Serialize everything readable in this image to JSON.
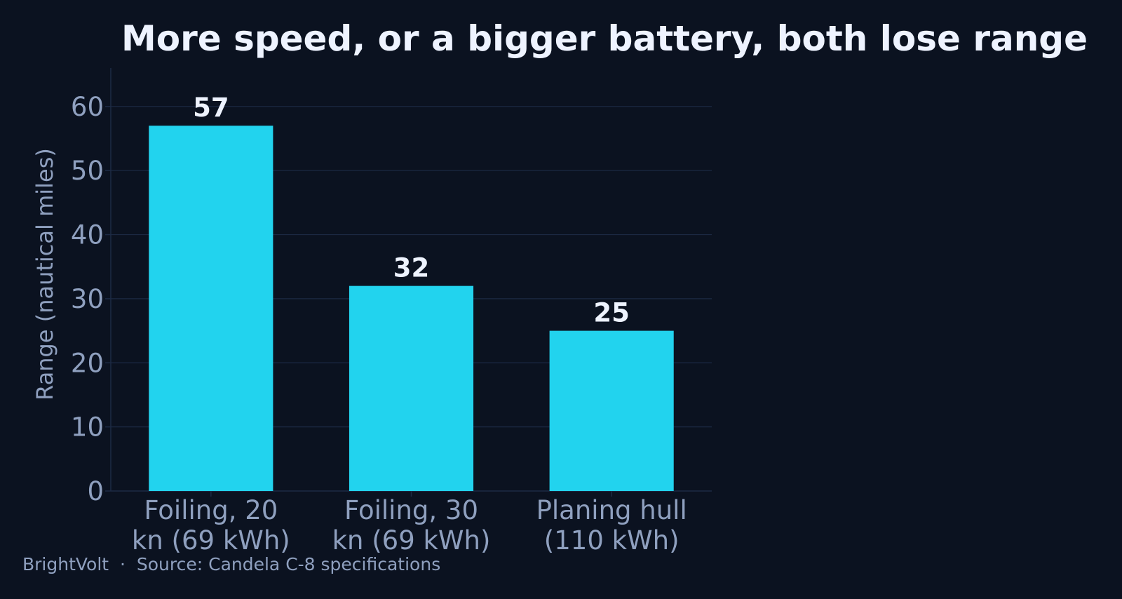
{
  "colors": {
    "background": "#0b1220",
    "bar": "#22d3ee",
    "grid": "#1c2a44",
    "text_muted": "#8fa0bf",
    "text_strong": "#eef3ff"
  },
  "chart_data": {
    "type": "bar",
    "title": "More speed, or a bigger battery, both lose range",
    "ylabel": "Range (nautical miles)",
    "xlabel": "",
    "categories": [
      [
        "Foiling, 20",
        "kn (69 kWh)"
      ],
      [
        "Foiling, 30",
        "kn (69 kWh)"
      ],
      [
        "Planing hull",
        "(110 kWh)"
      ]
    ],
    "values": [
      57,
      32,
      25
    ],
    "data_labels": [
      "57",
      "32",
      "25"
    ],
    "ylim": [
      0,
      66
    ],
    "yticks": [
      0,
      10,
      20,
      30,
      40,
      50,
      60
    ],
    "grid": true,
    "legend": "none"
  },
  "footer": {
    "brand": "BrightVolt",
    "separator": "·",
    "source": "Source: Candela C-8 specifications"
  }
}
